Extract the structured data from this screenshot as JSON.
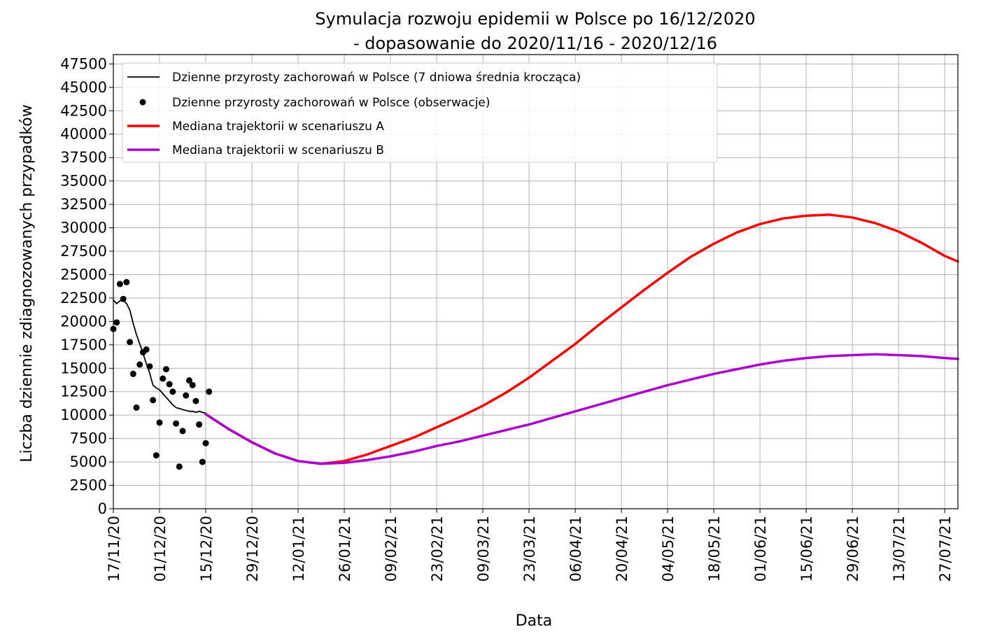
{
  "chart_data": {
    "type": "line",
    "title": "Symulacja rozwoju epidemii w Polsce po 16/12/2020",
    "subtitle": "- dopasowanie do 2020/11/16 - 2020/12/16",
    "xlabel": "Data",
    "ylabel": "Liczba dziennie zdiagnozowanych przypadków",
    "ylim": [
      0,
      48500
    ],
    "xlim": [
      "2020-11-17",
      "2021-07-31"
    ],
    "grid": true,
    "legend_placement": "upper-left",
    "yticks": [
      0,
      2500,
      5000,
      7500,
      10000,
      12500,
      15000,
      17500,
      20000,
      22500,
      25000,
      27500,
      30000,
      32500,
      35000,
      37500,
      40000,
      42500,
      45000,
      47500
    ],
    "xticks": [
      {
        "date": "2020-11-17",
        "label": "17/11/20"
      },
      {
        "date": "2020-12-01",
        "label": "01/12/20"
      },
      {
        "date": "2020-12-15",
        "label": "15/12/20"
      },
      {
        "date": "2020-12-29",
        "label": "29/12/20"
      },
      {
        "date": "2021-01-12",
        "label": "12/01/21"
      },
      {
        "date": "2021-01-26",
        "label": "26/01/21"
      },
      {
        "date": "2021-02-09",
        "label": "09/02/21"
      },
      {
        "date": "2021-02-23",
        "label": "23/02/21"
      },
      {
        "date": "2021-03-09",
        "label": "09/03/21"
      },
      {
        "date": "2021-03-23",
        "label": "23/03/21"
      },
      {
        "date": "2021-04-06",
        "label": "06/04/21"
      },
      {
        "date": "2021-04-20",
        "label": "20/04/21"
      },
      {
        "date": "2021-05-04",
        "label": "04/05/21"
      },
      {
        "date": "2021-05-18",
        "label": "18/05/21"
      },
      {
        "date": "2021-06-01",
        "label": "01/06/21"
      },
      {
        "date": "2021-06-15",
        "label": "15/06/21"
      },
      {
        "date": "2021-06-29",
        "label": "29/06/21"
      },
      {
        "date": "2021-07-13",
        "label": "13/07/21"
      },
      {
        "date": "2021-07-27",
        "label": "27/07/21"
      }
    ],
    "series": [
      {
        "name": "Dzienne przyrosty zachorowań w Polsce (7 dniowa średnia krocząca)",
        "kind": "line",
        "color": "#000000",
        "points": [
          [
            "2020-11-17",
            22300
          ],
          [
            "2020-11-18",
            21900
          ],
          [
            "2020-11-19",
            22200
          ],
          [
            "2020-11-20",
            22300
          ],
          [
            "2020-11-21",
            21900
          ],
          [
            "2020-11-22",
            21200
          ],
          [
            "2020-11-23",
            19800
          ],
          [
            "2020-11-24",
            18600
          ],
          [
            "2020-11-25",
            17600
          ],
          [
            "2020-11-26",
            16600
          ],
          [
            "2020-11-27",
            15500
          ],
          [
            "2020-11-28",
            14500
          ],
          [
            "2020-11-29",
            13200
          ],
          [
            "2020-11-30",
            12900
          ],
          [
            "2020-12-01",
            12700
          ],
          [
            "2020-12-02",
            12300
          ],
          [
            "2020-12-03",
            11900
          ],
          [
            "2020-12-04",
            11500
          ],
          [
            "2020-12-05",
            11100
          ],
          [
            "2020-12-06",
            10800
          ],
          [
            "2020-12-07",
            10700
          ],
          [
            "2020-12-08",
            10600
          ],
          [
            "2020-12-09",
            10500
          ],
          [
            "2020-12-10",
            10400
          ],
          [
            "2020-12-11",
            10400
          ],
          [
            "2020-12-12",
            10300
          ],
          [
            "2020-12-13",
            10400
          ],
          [
            "2020-12-14",
            10300
          ],
          [
            "2020-12-15",
            10200
          ]
        ]
      },
      {
        "name": "Dzienne przyrosty zachorowań w Polsce (obserwacje)",
        "kind": "scatter",
        "color": "#000000",
        "points": [
          [
            "2020-11-17",
            19200
          ],
          [
            "2020-11-18",
            19900
          ],
          [
            "2020-11-19",
            24000
          ],
          [
            "2020-11-20",
            22400
          ],
          [
            "2020-11-21",
            24200
          ],
          [
            "2020-11-22",
            17800
          ],
          [
            "2020-11-23",
            14400
          ],
          [
            "2020-11-24",
            10800
          ],
          [
            "2020-11-25",
            15400
          ],
          [
            "2020-11-26",
            16700
          ],
          [
            "2020-11-27",
            17000
          ],
          [
            "2020-11-28",
            15200
          ],
          [
            "2020-11-29",
            11600
          ],
          [
            "2020-11-30",
            5700
          ],
          [
            "2020-12-01",
            9200
          ],
          [
            "2020-12-02",
            13900
          ],
          [
            "2020-12-03",
            14900
          ],
          [
            "2020-12-04",
            13300
          ],
          [
            "2020-12-05",
            12500
          ],
          [
            "2020-12-06",
            9100
          ],
          [
            "2020-12-07",
            4500
          ],
          [
            "2020-12-08",
            8300
          ],
          [
            "2020-12-09",
            12100
          ],
          [
            "2020-12-10",
            13700
          ],
          [
            "2020-12-11",
            13200
          ],
          [
            "2020-12-12",
            11500
          ],
          [
            "2020-12-13",
            9000
          ],
          [
            "2020-12-14",
            5000
          ],
          [
            "2020-12-15",
            7000
          ],
          [
            "2020-12-16",
            12500
          ]
        ]
      },
      {
        "name": "Mediana trajektorii w scenariuszu A",
        "kind": "line",
        "color": "#ff0000",
        "points": [
          [
            "2020-12-15",
            10100
          ],
          [
            "2020-12-22",
            8500
          ],
          [
            "2020-12-29",
            7100
          ],
          [
            "2021-01-05",
            5900
          ],
          [
            "2021-01-12",
            5100
          ],
          [
            "2021-01-19",
            4800
          ],
          [
            "2021-01-26",
            5100
          ],
          [
            "2021-02-02",
            5800
          ],
          [
            "2021-02-09",
            6700
          ],
          [
            "2021-02-16",
            7600
          ],
          [
            "2021-02-23",
            8700
          ],
          [
            "2021-03-02",
            9800
          ],
          [
            "2021-03-09",
            11000
          ],
          [
            "2021-03-16",
            12400
          ],
          [
            "2021-03-23",
            14000
          ],
          [
            "2021-03-30",
            15800
          ],
          [
            "2021-04-06",
            17600
          ],
          [
            "2021-04-13",
            19600
          ],
          [
            "2021-04-20",
            21500
          ],
          [
            "2021-04-27",
            23400
          ],
          [
            "2021-05-04",
            25200
          ],
          [
            "2021-05-11",
            26900
          ],
          [
            "2021-05-18",
            28300
          ],
          [
            "2021-05-25",
            29500
          ],
          [
            "2021-06-01",
            30400
          ],
          [
            "2021-06-08",
            31000
          ],
          [
            "2021-06-15",
            31300
          ],
          [
            "2021-06-22",
            31400
          ],
          [
            "2021-06-29",
            31100
          ],
          [
            "2021-07-06",
            30500
          ],
          [
            "2021-07-13",
            29600
          ],
          [
            "2021-07-20",
            28400
          ],
          [
            "2021-07-27",
            27000
          ],
          [
            "2021-07-31",
            26400
          ]
        ]
      },
      {
        "name": "Mediana trajektorii w scenariuszu B",
        "kind": "line",
        "color": "#aa00cc",
        "points": [
          [
            "2020-12-15",
            10100
          ],
          [
            "2020-12-22",
            8500
          ],
          [
            "2020-12-29",
            7100
          ],
          [
            "2021-01-05",
            5900
          ],
          [
            "2021-01-12",
            5100
          ],
          [
            "2021-01-19",
            4800
          ],
          [
            "2021-01-26",
            4900
          ],
          [
            "2021-02-02",
            5200
          ],
          [
            "2021-02-09",
            5600
          ],
          [
            "2021-02-16",
            6100
          ],
          [
            "2021-02-23",
            6700
          ],
          [
            "2021-03-02",
            7200
          ],
          [
            "2021-03-09",
            7800
          ],
          [
            "2021-03-16",
            8400
          ],
          [
            "2021-03-23",
            9000
          ],
          [
            "2021-03-30",
            9700
          ],
          [
            "2021-04-06",
            10400
          ],
          [
            "2021-04-13",
            11100
          ],
          [
            "2021-04-20",
            11800
          ],
          [
            "2021-04-27",
            12500
          ],
          [
            "2021-05-04",
            13200
          ],
          [
            "2021-05-11",
            13800
          ],
          [
            "2021-05-18",
            14400
          ],
          [
            "2021-05-25",
            14900
          ],
          [
            "2021-06-01",
            15400
          ],
          [
            "2021-06-08",
            15800
          ],
          [
            "2021-06-15",
            16100
          ],
          [
            "2021-06-22",
            16300
          ],
          [
            "2021-06-29",
            16400
          ],
          [
            "2021-07-06",
            16500
          ],
          [
            "2021-07-13",
            16400
          ],
          [
            "2021-07-20",
            16300
          ],
          [
            "2021-07-27",
            16100
          ],
          [
            "2021-07-31",
            16000
          ]
        ]
      }
    ]
  }
}
